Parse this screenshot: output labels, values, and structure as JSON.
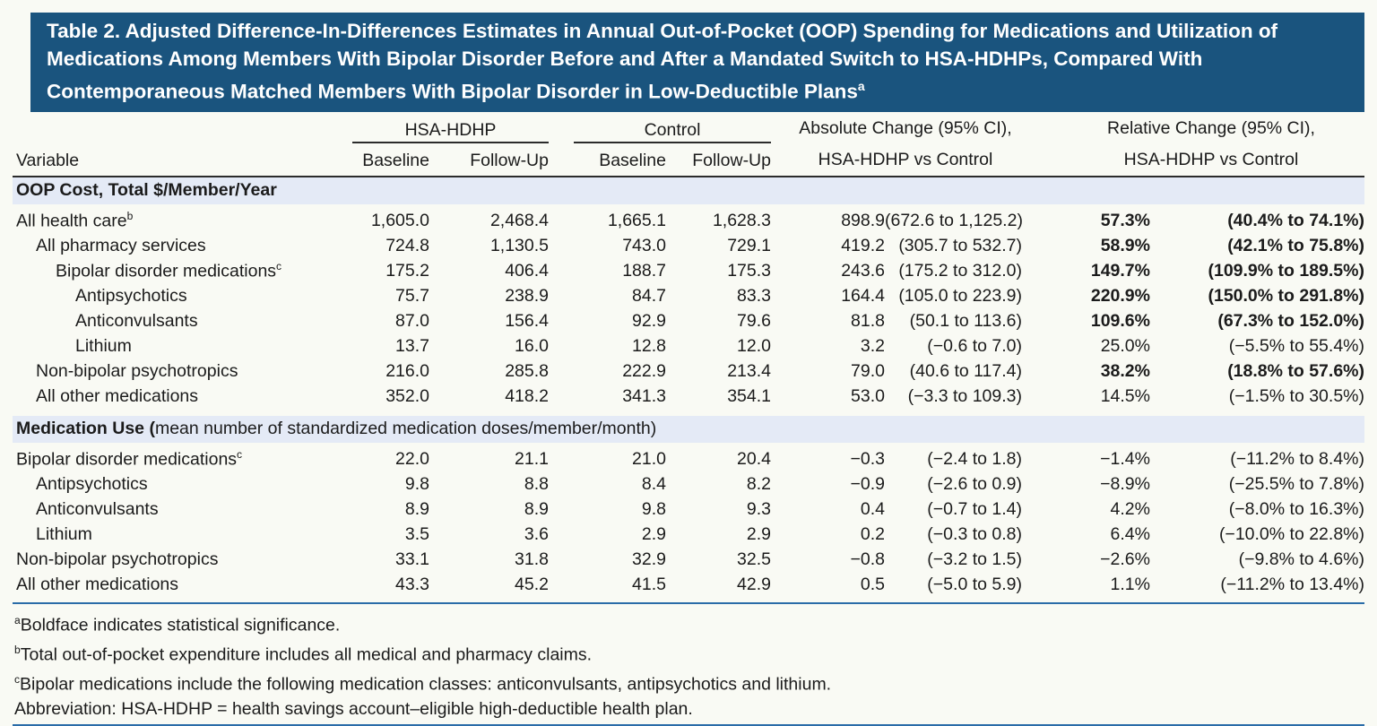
{
  "title": {
    "text": "Table 2. Adjusted Difference-In-Differences Estimates in Annual Out-of-Pocket (OOP) Spending for Medications and Utilization of Medications Among Members With Bipolar Disorder Before and After a Mandated Switch to HSA-HDHPs, Compared With Contemporaneous Matched Members With Bipolar Disorder in Low-Deductible Plans",
    "sup": "a"
  },
  "colors": {
    "title_background": "#1a547e",
    "title_text": "#ffffff",
    "section_band": "#e4eaf6",
    "blue_rule": "#2a6ca8",
    "dark_rule": "#2b2b2b",
    "page_background": "#f9faf4"
  },
  "columns": {
    "variable": "Variable",
    "groups": [
      {
        "label": "HSA-HDHP",
        "sub": [
          "Baseline",
          "Follow-Up"
        ]
      },
      {
        "label": "Control",
        "sub": [
          "Baseline",
          "Follow-Up"
        ]
      }
    ],
    "change_headers": [
      {
        "line1": "Absolute Change (95% CI),",
        "line2": "HSA-HDHP vs Control"
      },
      {
        "line1": "Relative Change (95% CI),",
        "line2": "HSA-HDHP vs Control"
      }
    ],
    "value_keys": [
      "hsa-baseline",
      "hsa-followup",
      "control-baseline",
      "control-followup",
      "abs-change",
      "abs-ci",
      "rel-change",
      "rel-ci"
    ]
  },
  "sections": [
    {
      "label_strong": "OOP Cost, Total $/Member/Year",
      "label_normal": "",
      "rows": [
        {
          "label": "All health care",
          "sup": "b",
          "indent": 0,
          "bold": true,
          "values": [
            "1,605.0",
            "2,468.4",
            "1,665.1",
            "1,628.3",
            "898.9",
            "(672.6 to 1,125.2)",
            "57.3%",
            "(40.4% to 74.1%)"
          ]
        },
        {
          "label": "All pharmacy services",
          "sup": "",
          "indent": 1,
          "bold": true,
          "values": [
            "724.8",
            "1,130.5",
            "743.0",
            "729.1",
            "419.2",
            "(305.7 to 532.7)",
            "58.9%",
            "(42.1% to 75.8%)"
          ]
        },
        {
          "label": "Bipolar disorder medications",
          "sup": "c",
          "indent": 2,
          "bold": true,
          "values": [
            "175.2",
            "406.4",
            "188.7",
            "175.3",
            "243.6",
            "(175.2 to 312.0)",
            "149.7%",
            "(109.9% to 189.5%)"
          ]
        },
        {
          "label": "Antipsychotics",
          "sup": "",
          "indent": 3,
          "bold": true,
          "values": [
            "75.7",
            "238.9",
            "84.7",
            "83.3",
            "164.4",
            "(105.0 to 223.9)",
            "220.9%",
            "(150.0% to 291.8%)"
          ]
        },
        {
          "label": "Anticonvulsants",
          "sup": "",
          "indent": 3,
          "bold": true,
          "values": [
            "87.0",
            "156.4",
            "92.9",
            "79.6",
            "81.8",
            "(50.1 to 113.6)",
            "109.6%",
            "(67.3% to 152.0%)"
          ]
        },
        {
          "label": "Lithium",
          "sup": "",
          "indent": 3,
          "bold": false,
          "values": [
            "13.7",
            "16.0",
            "12.8",
            "12.0",
            "3.2",
            "(−0.6 to 7.0)",
            "25.0%",
            "(−5.5% to 55.4%)"
          ]
        },
        {
          "label": "Non-bipolar psychotropics",
          "sup": "",
          "indent": 1,
          "bold": true,
          "values": [
            "216.0",
            "285.8",
            "222.9",
            "213.4",
            "79.0",
            "(40.6 to 117.4)",
            "38.2%",
            "(18.8% to 57.6%)"
          ]
        },
        {
          "label": "All other medications",
          "sup": "",
          "indent": 1,
          "bold": false,
          "values": [
            "352.0",
            "418.2",
            "341.3",
            "354.1",
            "53.0",
            "(−3.3 to 109.3)",
            "14.5%",
            "(−1.5% to 30.5%)"
          ]
        }
      ]
    },
    {
      "label_strong": "Medication Use (",
      "label_normal": "mean number of standardized medication doses/member/month)",
      "rows": [
        {
          "label": "Bipolar disorder medications",
          "sup": "c",
          "indent": 0,
          "bold": false,
          "values": [
            "22.0",
            "21.1",
            "21.0",
            "20.4",
            "−0.3",
            "(−2.4 to 1.8)",
            "−1.4%",
            "(−11.2% to 8.4%)"
          ]
        },
        {
          "label": "Antipsychotics",
          "sup": "",
          "indent": 1,
          "bold": false,
          "values": [
            "9.8",
            "8.8",
            "8.4",
            "8.2",
            "−0.9",
            "(−2.6 to 0.9)",
            "−8.9%",
            "(−25.5% to 7.8%)"
          ]
        },
        {
          "label": "Anticonvulsants",
          "sup": "",
          "indent": 1,
          "bold": false,
          "values": [
            "8.9",
            "8.9",
            "9.8",
            "9.3",
            "0.4",
            "(−0.7 to 1.4)",
            "4.2%",
            "(−8.0% to 16.3%)"
          ]
        },
        {
          "label": "Lithium",
          "sup": "",
          "indent": 1,
          "bold": false,
          "values": [
            "3.5",
            "3.6",
            "2.9",
            "2.9",
            "0.2",
            "(−0.3 to 0.8)",
            "6.4%",
            "(−10.0% to 22.8%)"
          ]
        },
        {
          "label": "Non-bipolar psychotropics",
          "sup": "",
          "indent": 0,
          "bold": false,
          "values": [
            "33.1",
            "31.8",
            "32.9",
            "32.5",
            "−0.8",
            "(−3.2 to 1.5)",
            "−2.6%",
            "(−9.8% to 4.6%)"
          ]
        },
        {
          "label": "All other medications",
          "sup": "",
          "indent": 0,
          "bold": false,
          "values": [
            "43.3",
            "45.2",
            "41.5",
            "42.9",
            "0.5",
            "(−5.0 to 5.9)",
            "1.1%",
            "(−11.2% to 13.4%)"
          ]
        }
      ]
    }
  ],
  "footnotes": [
    {
      "sup": "a",
      "text": "Boldface indicates statistical significance."
    },
    {
      "sup": "b",
      "text": "Total out-of-pocket expenditure includes all medical and pharmacy claims."
    },
    {
      "sup": "c",
      "text": "Bipolar medications include the following medication classes: anticonvulsants, antipsychotics and lithium."
    },
    {
      "sup": "",
      "text": "Abbreviation: HSA-HDHP = health savings account–eligible high-deductible health plan."
    }
  ]
}
